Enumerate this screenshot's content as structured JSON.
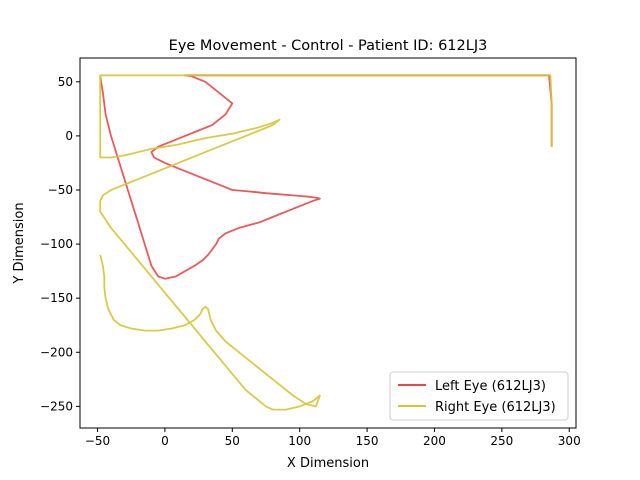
{
  "chart_data": {
    "type": "line",
    "title": "Eye Movement - Control - Patient ID: 612LJ3",
    "xlabel": "X Dimension",
    "ylabel": "Y Dimension",
    "xlim": [
      -63,
      305
    ],
    "ylim": [
      -270,
      72
    ],
    "xticks": [
      -50,
      0,
      50,
      100,
      150,
      200,
      250,
      300
    ],
    "yticks": [
      50,
      0,
      -50,
      -100,
      -150,
      -200,
      -250
    ],
    "grid": false,
    "legend_position": "lower-right",
    "series": [
      {
        "name": "Left Eye (612LJ3)",
        "color": "#e8474a",
        "x": [
          -48,
          -46,
          -44,
          -40,
          -35,
          -30,
          -25,
          -20,
          -15,
          -10,
          -5,
          0,
          8,
          15,
          22,
          28,
          32,
          35,
          38,
          40,
          45,
          55,
          70,
          80,
          90,
          100,
          110,
          115,
          112,
          105,
          95,
          85,
          75,
          68,
          60,
          50,
          40,
          30,
          20,
          10,
          0,
          -8,
          -10,
          -5,
          5,
          15,
          25,
          35,
          45,
          50,
          40,
          30,
          20,
          15,
          25,
          35,
          38,
          37,
          34,
          30,
          28,
          35,
          45,
          60,
          80,
          100,
          150,
          200,
          250,
          285,
          287,
          287
        ],
        "y": [
          55,
          40,
          20,
          0,
          -20,
          -40,
          -60,
          -80,
          -100,
          -120,
          -130,
          -132,
          -130,
          -125,
          -120,
          -115,
          -110,
          -105,
          -100,
          -95,
          -90,
          -85,
          -80,
          -75,
          -70,
          -65,
          -60,
          -58,
          -57,
          -56,
          -55,
          -54,
          -53,
          -52,
          -51,
          -50,
          -45,
          -40,
          -35,
          -30,
          -25,
          -20,
          -15,
          -10,
          -5,
          0,
          5,
          10,
          20,
          30,
          40,
          50,
          55,
          56,
          56,
          56,
          56,
          56,
          56,
          56,
          56,
          56,
          56,
          56,
          56,
          56,
          56,
          56,
          56,
          56,
          30,
          -10
        ]
      },
      {
        "name": "Right Eye (612LJ3)",
        "color": "#d4c43a",
        "x": [
          -48,
          -46,
          -45,
          -45,
          -44,
          -42,
          -38,
          -33,
          -25,
          -15,
          -5,
          5,
          15,
          22,
          26,
          28,
          30,
          32,
          34,
          38,
          45,
          55,
          65,
          75,
          85,
          95,
          105,
          112,
          115,
          110,
          100,
          90,
          80,
          75,
          70,
          60,
          50,
          40,
          30,
          20,
          10,
          0,
          -10,
          -20,
          -30,
          -40,
          -48,
          -48,
          -46,
          -40,
          -30,
          -20,
          -10,
          0,
          10,
          20,
          30,
          40,
          50,
          60,
          70,
          80,
          85,
          80,
          70,
          60,
          50,
          40,
          30,
          20,
          10,
          0,
          -10,
          -20,
          -30,
          -40,
          -48,
          -48,
          -40,
          -20,
          0,
          20,
          40,
          80,
          120,
          160,
          200,
          240,
          280,
          286,
          287,
          287
        ],
        "y": [
          -110,
          -120,
          -130,
          -140,
          -150,
          -160,
          -170,
          -175,
          -178,
          -180,
          -180,
          -178,
          -175,
          -170,
          -165,
          -160,
          -158,
          -160,
          -170,
          -180,
          -190,
          -200,
          -210,
          -220,
          -230,
          -240,
          -248,
          -250,
          -240,
          -245,
          -250,
          -253,
          -253,
          -250,
          -245,
          -235,
          -220,
          -205,
          -190,
          -175,
          -160,
          -145,
          -130,
          -115,
          -100,
          -85,
          -70,
          -60,
          -55,
          -50,
          -45,
          -40,
          -35,
          -30,
          -25,
          -20,
          -15,
          -10,
          -5,
          0,
          5,
          10,
          15,
          12,
          8,
          5,
          2,
          0,
          -2,
          -5,
          -8,
          -10,
          -12,
          -15,
          -18,
          -20,
          -20,
          56,
          56,
          56,
          56,
          56,
          56,
          56,
          56,
          56,
          56,
          56,
          56,
          56,
          30,
          -10
        ]
      }
    ]
  }
}
